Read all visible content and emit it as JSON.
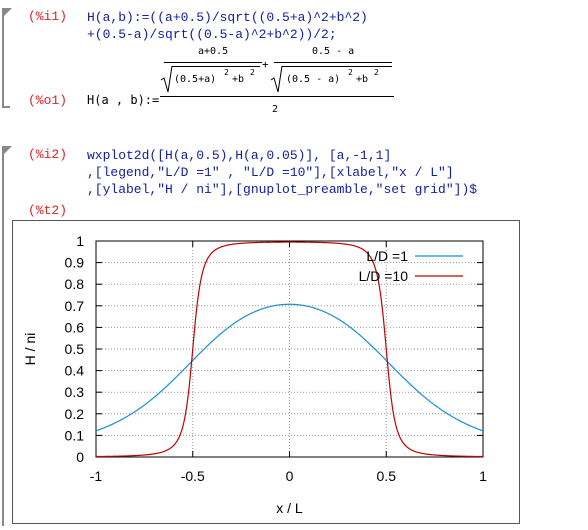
{
  "cells": {
    "input1": {
      "label": "(%i1)",
      "line1": "H(a,b):=((a+0.5)/sqrt((0.5+a)^2+b^2)",
      "line2": "+(0.5-a)/sqrt((0.5-a)^2+b^2))/2;"
    },
    "output1": {
      "label": "(%o1)",
      "lhs": "H(a , b):=",
      "num1": "a+0.5",
      "num2": "0.5 - a",
      "den1": "(0.5+a)",
      "den1_exp": "2",
      "den1_tail": "+b",
      "den1_tail_exp": "2",
      "den2": "(0.5 - a)",
      "den2_exp": "2",
      "den2_tail": "+b",
      "den2_tail_exp": "2",
      "plus": "+",
      "denominator": "2"
    },
    "input2": {
      "label": "(%i2)",
      "line1": "wxplot2d([H(a,0.5),H(a,0.05)], [a,-1,1]",
      "line2": ",[legend,\"L/D =1\" , \"L/D =10\"],[xlabel,\"x / L\"]",
      "line3": ",[ylabel,\"H / ni\"],[gnuplot_preamble,\"set grid\"])$"
    },
    "output2": {
      "label": "(%t2)"
    }
  },
  "chart_data": {
    "type": "line",
    "xlabel": "x / L",
    "ylabel": "H / ni",
    "xlim": [
      -1,
      1
    ],
    "ylim": [
      0,
      1
    ],
    "xticks": [
      "-1",
      "-0.5",
      "0",
      "0.5",
      "1"
    ],
    "yticks": [
      "0",
      "0.1",
      "0.2",
      "0.3",
      "0.4",
      "0.5",
      "0.6",
      "0.7",
      "0.8",
      "0.9",
      "1"
    ],
    "grid": true,
    "legend_position": "top-right",
    "series": [
      {
        "name": "L/D =1",
        "b": 0.5,
        "color": "#1a8fd0"
      },
      {
        "name": "L/D =10",
        "b": 0.05,
        "color": "#c00000"
      }
    ]
  }
}
